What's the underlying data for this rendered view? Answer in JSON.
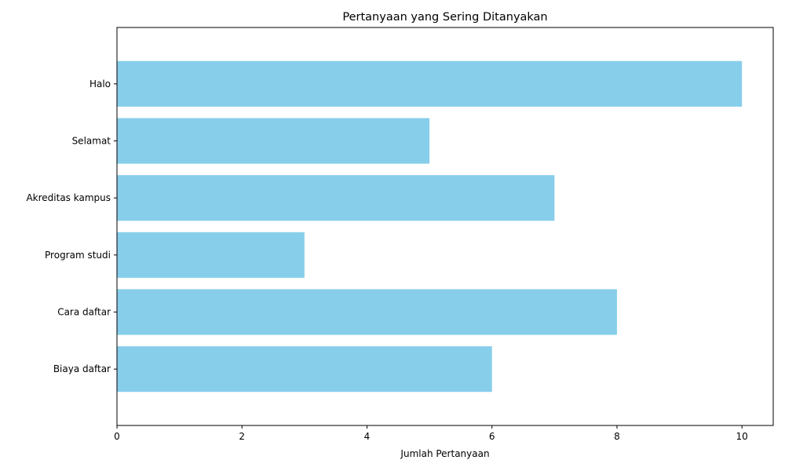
{
  "chart_data": {
    "type": "bar",
    "orientation": "horizontal",
    "title": "Pertanyaan yang Sering Ditanyakan",
    "xlabel": "Jumlah Pertanyaan",
    "ylabel": "",
    "categories": [
      "Halo",
      "Selamat",
      "Akreditas kampus",
      "Program studi",
      "Cara daftar",
      "Biaya daftar"
    ],
    "values": [
      10,
      5,
      7,
      3,
      8,
      6
    ],
    "xlim": [
      0,
      10.5
    ],
    "xticks": [
      0,
      2,
      4,
      6,
      8,
      10
    ],
    "bar_color": "#87ceeb",
    "grid": false,
    "legend": "none"
  }
}
